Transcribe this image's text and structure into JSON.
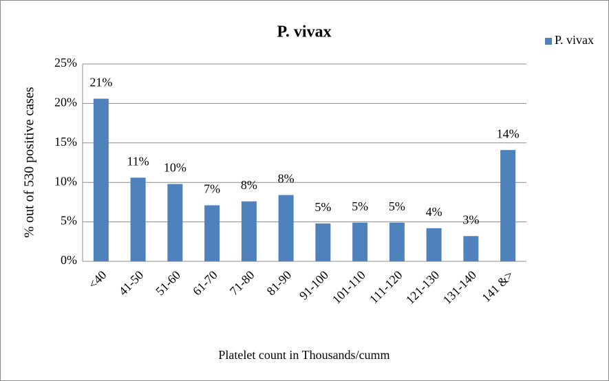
{
  "chart_data": {
    "type": "bar",
    "title": "P. vivax",
    "x_label": "Platelet count in Thousands/cumm",
    "y_label": "% out of 530 positive cases",
    "categories": [
      "<40",
      "41-50",
      "51-60",
      "61-70",
      "71-80",
      "81-90",
      "91-100",
      "101-110",
      "111-120",
      "121-130",
      "131-140",
      "141 &>"
    ],
    "series": [
      {
        "name": "P. vivax",
        "color": "#4f81bd",
        "values": [
          20.6,
          10.6,
          9.8,
          7.1,
          7.6,
          8.4,
          4.8,
          4.9,
          4.9,
          4.2,
          3.2,
          14.1
        ],
        "value_labels": [
          "21%",
          "11%",
          "10%",
          "7%",
          "8%",
          "8%",
          "5%",
          "5%",
          "5%",
          "4%",
          "3%",
          "14%"
        ]
      }
    ],
    "ylim": [
      0,
      25
    ],
    "yticks": [
      {
        "value": 0,
        "label": "0%"
      },
      {
        "value": 5,
        "label": "5%"
      },
      {
        "value": 10,
        "label": "10%"
      },
      {
        "value": 15,
        "label": "15%"
      },
      {
        "value": 20,
        "label": "20%"
      },
      {
        "value": 25,
        "label": "25%"
      }
    ],
    "grid": true,
    "legend": "right"
  }
}
